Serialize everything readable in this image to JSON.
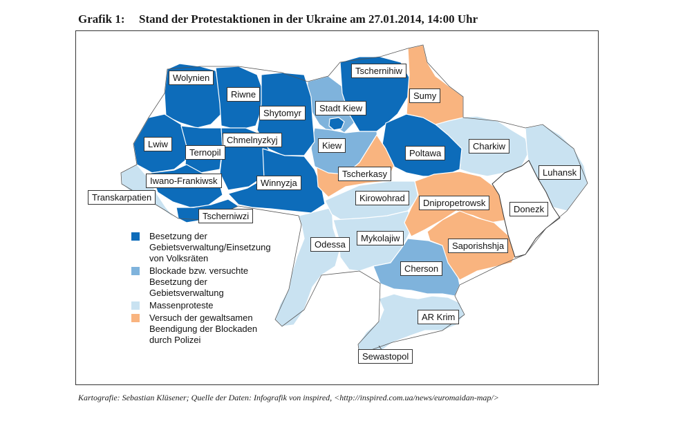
{
  "title": {
    "number": "Grafik 1:",
    "text": "Stand der Protestaktionen in der Ukraine am 27.01.2014, 14:00 Uhr"
  },
  "colors": {
    "occupation": "#0d6cba",
    "blockade": "#7fb3dc",
    "mass_protests": "#c9e2f1",
    "police": "#f9b47f",
    "none": "#ffffff"
  },
  "regions": {
    "wolynien": "Wolynien",
    "rivne": "Riwne",
    "shytomyr": "Shytomyr",
    "stadt_kiew": "Stadt Kiew",
    "tschernihiw": "Tschernihiw",
    "sumy": "Sumy",
    "lwiw": "Lwiw",
    "chmelnyzkyj": "Chmelnyzkyj",
    "ternopil": "Ternopil",
    "kiew": "Kiew",
    "poltawa": "Poltawa",
    "charkiw": "Charkiw",
    "luhansk": "Luhansk",
    "tscherkasy": "Tscherkasy",
    "iwano_frankiwsk": "Iwano-Frankiwsk",
    "winnyzja": "Winnyzja",
    "transkarpatien": "Transkarpatien",
    "kirowohrad": "Kirowohrad",
    "dnipropetrowsk": "Dnipropetrowsk",
    "donezk": "Donezk",
    "tscherniwzi": "Tscherniwzi",
    "odessa": "Odessa",
    "mykolajiw": "Mykolajiw",
    "saporishshja": "Saporishshja",
    "cherson": "Cherson",
    "ar_krim": "AR Krim",
    "sewastopol": "Sewastopol"
  },
  "legend": [
    {
      "text": "Besetzung der Gebietsverwaltung/Einsetzung von Volksräten",
      "color": "#0d6cba"
    },
    {
      "text": "Blockade bzw. versuchte Besetzung der Gebietsverwaltung",
      "color": "#7fb3dc"
    },
    {
      "text": "Massenproteste",
      "color": "#c9e2f1"
    },
    {
      "text": "Versuch der gewaltsamen Beendigung der Blockaden durch Polizei",
      "color": "#f9b47f"
    }
  ],
  "source": "Kartografie: Sebastian Klüsener; Quelle der Daten: Infografik von inspired, <http://inspired.com.ua/news/euromaidan-map/>"
}
